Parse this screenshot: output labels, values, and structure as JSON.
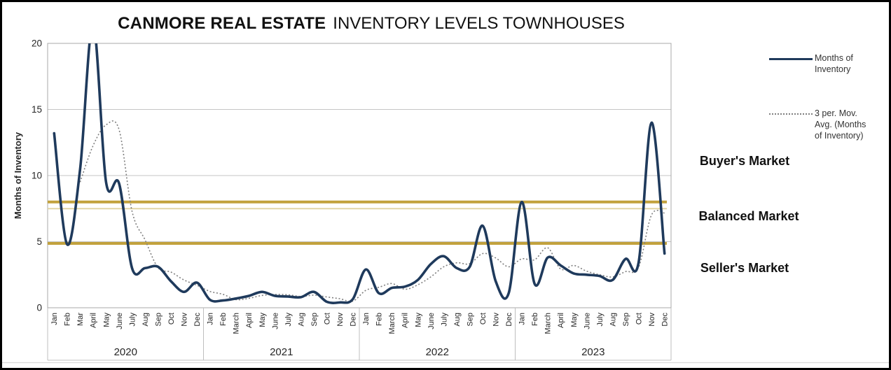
{
  "title": {
    "brand": "CANMORE REAL ESTATE",
    "rest": "INVENTORY LEVELS TOWNHOUSES"
  },
  "legend": {
    "series1_label": "Months of Inventory",
    "series2_label": "3 per. Mov. Avg. (Months of Inventory)"
  },
  "market_zones": {
    "buyers": "Buyer's Market",
    "balanced": "Balanced Market",
    "sellers": "Seller's Market"
  },
  "y_axis": {
    "title": "Months of Inventory",
    "ticks": [
      0,
      5,
      10,
      15,
      20
    ]
  },
  "colors": {
    "line": "#1f3a5c",
    "moving_avg": "#7f7f7f",
    "gold_threshold": "#c2a23d",
    "gold_threshold_light": "#e0d3a0",
    "grid": "#c6c6c6",
    "axis": "#a8a8a8"
  },
  "chart_data": {
    "type": "line",
    "title": "CANMORE REAL ESTATE INVENTORY LEVELS TOWNHOUSES",
    "xlabel": "",
    "ylabel": "Months of Inventory",
    "ylim": [
      0,
      20
    ],
    "grid": "horizontal",
    "legend_position": "right",
    "years": [
      {
        "year": "2020",
        "months": [
          "Jan",
          "Feb",
          "Mar",
          "April",
          "May",
          "June",
          "July",
          "Aug",
          "Sep",
          "Oct",
          "Nov",
          "Dec"
        ]
      },
      {
        "year": "2021",
        "months": [
          "Jan",
          "Feb",
          "March",
          "April",
          "May",
          "June",
          "July",
          "Aug",
          "Sep",
          "Oct",
          "Nov",
          "Dec"
        ]
      },
      {
        "year": "2022",
        "months": [
          "Jan",
          "Feb",
          "March",
          "April",
          "May",
          "June",
          "July",
          "Aug",
          "Sep",
          "Oct",
          "Nov",
          "Dec"
        ]
      },
      {
        "year": "2023",
        "months": [
          "Jan",
          "Feb",
          "March",
          "April",
          "May",
          "June",
          "July",
          "Aug",
          "Sep",
          "Oct",
          "Nov",
          "Dec"
        ]
      }
    ],
    "series": [
      {
        "name": "Months of Inventory",
        "style": "solid",
        "values": [
          13.2,
          4.8,
          10.5,
          21.5,
          9.5,
          9.4,
          3.0,
          3.0,
          3.1,
          2.0,
          1.2,
          1.9,
          0.6,
          0.55,
          0.7,
          0.9,
          1.2,
          0.9,
          0.85,
          0.8,
          1.2,
          0.45,
          0.4,
          0.65,
          2.9,
          1.1,
          1.5,
          1.6,
          2.1,
          3.3,
          3.9,
          3.0,
          3.1,
          6.2,
          2.0,
          1.1,
          8.0,
          1.8,
          3.8,
          3.2,
          2.6,
          2.5,
          2.4,
          2.1,
          3.7,
          3.4,
          14.0,
          4.1
        ],
        "note": "April 2020 peak runs off the top of the plot (clipped at 20)"
      },
      {
        "name": "3 per. Mov. Avg. (Months of Inventory)",
        "style": "dotted",
        "derived": "trailing moving average of Months of Inventory",
        "window": 3
      }
    ],
    "reference_lines": [
      {
        "value": 8,
        "label": "Buyer's / Balanced threshold",
        "color": "#c2a23d"
      },
      {
        "value": 5,
        "label": "Balanced / Seller's threshold",
        "color": "#c2a23d"
      }
    ],
    "annotations": [
      "Buyer's Market",
      "Balanced Market",
      "Seller's Market"
    ]
  }
}
